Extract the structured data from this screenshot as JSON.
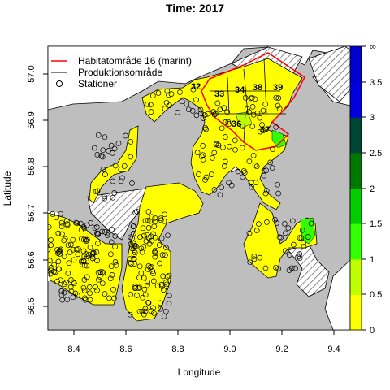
{
  "title": "Time: 2017",
  "axes": {
    "xlabel": "Longitude",
    "ylabel": "Latitude",
    "xticks": [
      "8.4",
      "8.6",
      "8.8",
      "9.0",
      "9.2",
      "9.4"
    ],
    "yticks": [
      "56.5",
      "56.6",
      "56.7",
      "56.8",
      "56.9",
      "57.0"
    ]
  },
  "legend": {
    "position": "top-left",
    "items": [
      {
        "label": "Habitatområde 16 (marint)",
        "symbol": "line",
        "color": "#ff0000"
      },
      {
        "label": "Produktionsområde",
        "symbol": "line",
        "color": "#000000"
      },
      {
        "label": "Stationer",
        "symbol": "circle",
        "color": "#000000"
      }
    ]
  },
  "colorbar": {
    "labels": [
      "0",
      "0.5",
      "1",
      "1.5",
      "2",
      "2.5",
      "3",
      "3.5",
      "∞"
    ],
    "colors": [
      "#ffff00",
      "#bfff00",
      "#33ff00",
      "#00cc00",
      "#007700",
      "#004433",
      "#0000dd",
      "#0000cc"
    ]
  },
  "zone_labels": [
    "32",
    "33",
    "34",
    "38",
    "39",
    "36",
    "37"
  ],
  "colors": {
    "land": "#bebebe",
    "water": "#ffff00",
    "habitat_border": "#ff0000",
    "hatch": "#555555"
  }
}
